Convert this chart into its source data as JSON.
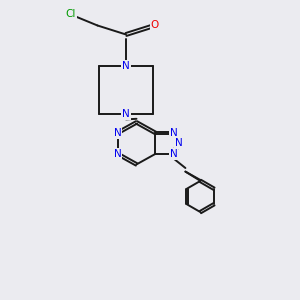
{
  "background_color": "#ebebf0",
  "bond_color": "#1a1a1a",
  "n_color": "#0000ee",
  "o_color": "#ee0000",
  "cl_color": "#009900",
  "figsize": [
    3.0,
    3.0
  ],
  "dpi": 100,
  "lw": 1.4,
  "fs": 7.5,
  "xlim": [
    0,
    10
  ],
  "ylim": [
    0,
    10
  ]
}
